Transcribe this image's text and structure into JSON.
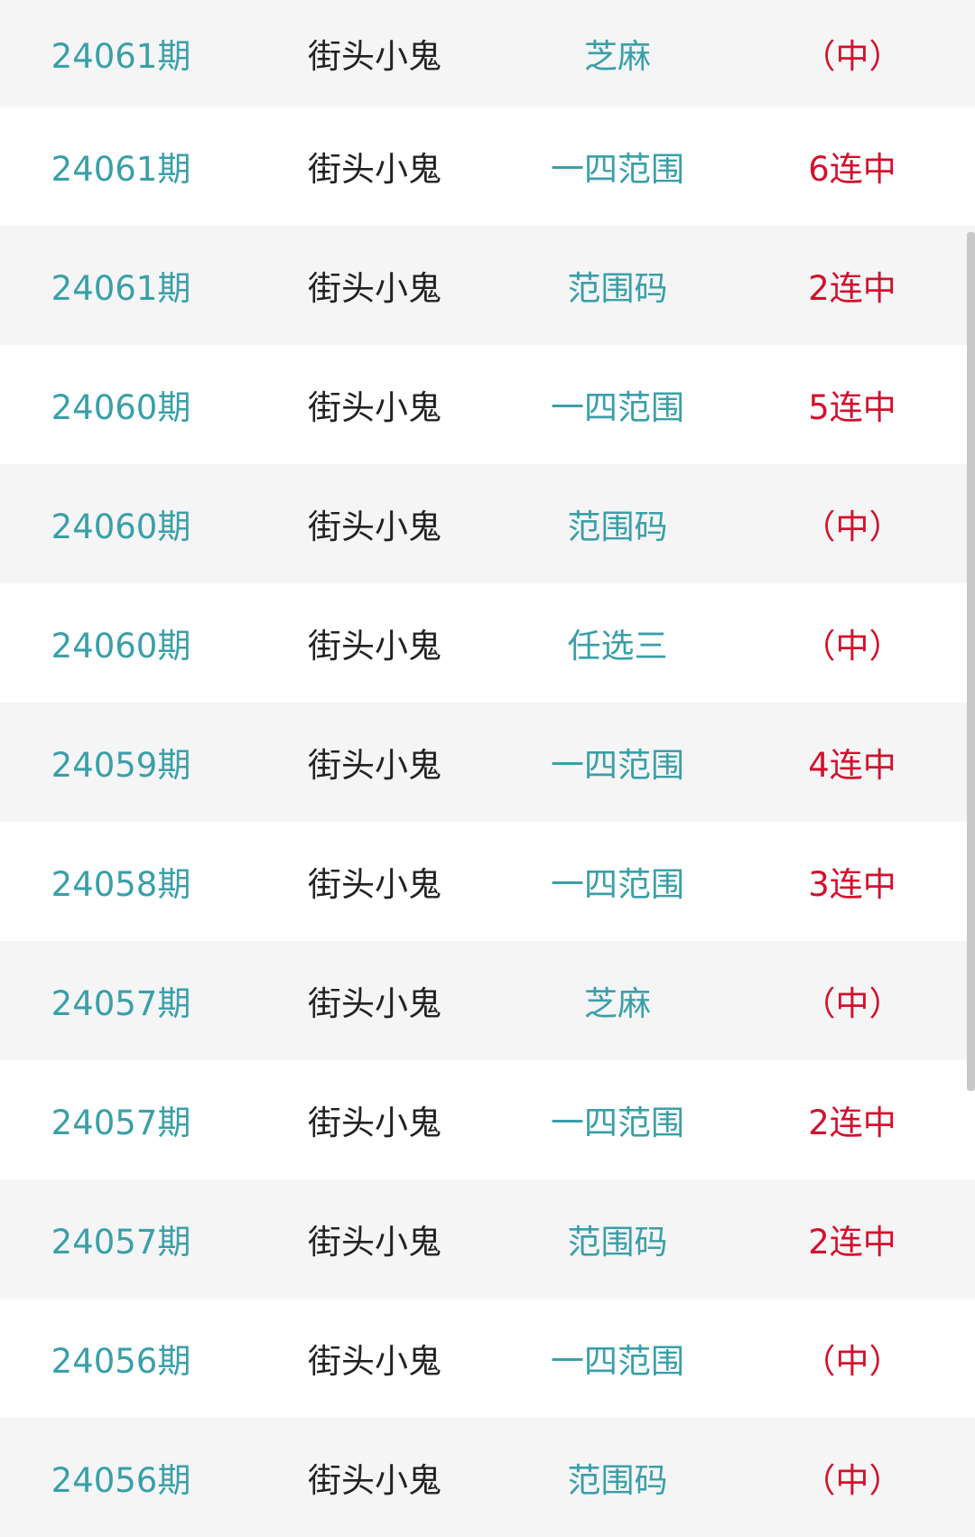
{
  "colors": {
    "issue": "#3a9fa8",
    "author": "#222222",
    "type": "#3a9fa8",
    "result": "#d3102c"
  },
  "rows": [
    {
      "issue": "24061期",
      "author": "街头小鬼",
      "type": "芝麻",
      "result": "（中）"
    },
    {
      "issue": "24061期",
      "author": "街头小鬼",
      "type": "一四范围",
      "result": "6连中"
    },
    {
      "issue": "24061期",
      "author": "街头小鬼",
      "type": "范围码",
      "result": "2连中"
    },
    {
      "issue": "24060期",
      "author": "街头小鬼",
      "type": "一四范围",
      "result": "5连中"
    },
    {
      "issue": "24060期",
      "author": "街头小鬼",
      "type": "范围码",
      "result": "（中）"
    },
    {
      "issue": "24060期",
      "author": "街头小鬼",
      "type": "任选三",
      "result": "（中）"
    },
    {
      "issue": "24059期",
      "author": "街头小鬼",
      "type": "一四范围",
      "result": "4连中"
    },
    {
      "issue": "24058期",
      "author": "街头小鬼",
      "type": "一四范围",
      "result": "3连中"
    },
    {
      "issue": "24057期",
      "author": "街头小鬼",
      "type": "芝麻",
      "result": "（中）"
    },
    {
      "issue": "24057期",
      "author": "街头小鬼",
      "type": "一四范围",
      "result": "2连中"
    },
    {
      "issue": "24057期",
      "author": "街头小鬼",
      "type": "范围码",
      "result": "2连中"
    },
    {
      "issue": "24056期",
      "author": "街头小鬼",
      "type": "一四范围",
      "result": "（中）"
    },
    {
      "issue": "24056期",
      "author": "街头小鬼",
      "type": "范围码",
      "result": "（中）"
    }
  ]
}
